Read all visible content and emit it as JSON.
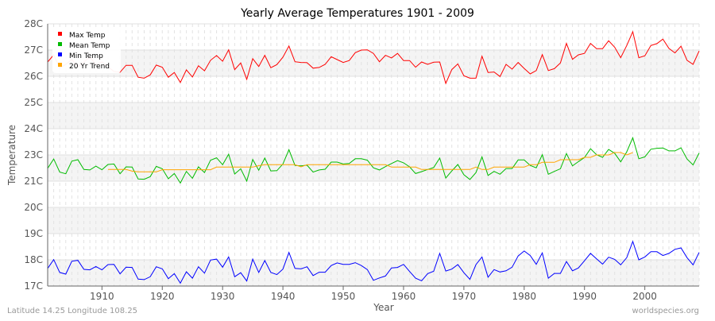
{
  "chart_data": {
    "type": "line",
    "title": "Yearly Average Temperatures 1901 - 2009",
    "xlabel": "Year",
    "ylabel": "Temperature",
    "xlim": [
      1901,
      2009
    ],
    "ylim": [
      17,
      28
    ],
    "x_ticks": [
      1910,
      1920,
      1930,
      1940,
      1950,
      1960,
      1970,
      1980,
      1990,
      2000
    ],
    "y_ticks": [
      {
        "value": 28,
        "label": "28C"
      },
      {
        "value": 26.9,
        "label": "27C"
      },
      {
        "value": 25.8,
        "label": "26C"
      },
      {
        "value": 24.7,
        "label": "25C"
      },
      {
        "value": 23.6,
        "label": "24C"
      },
      {
        "value": 22.5,
        "label": "23C"
      },
      {
        "value": 21.4,
        "label": "21C"
      },
      {
        "value": 20.3,
        "label": "20C"
      },
      {
        "value": 19.2,
        "label": "19C"
      },
      {
        "value": 18.1,
        "label": "18C"
      },
      {
        "value": 17,
        "label": "17C"
      }
    ],
    "grid": true,
    "legend_position": "top-left",
    "x_start": 1901,
    "series": [
      {
        "name": "Max Temp",
        "color": "#ff0000",
        "start": 1901,
        "values": [
          26.4,
          26.7,
          26.15,
          26.3,
          26.5,
          26.2,
          26.4,
          26.6,
          26.3,
          26.4,
          26.2,
          26.0,
          25.97,
          26.26,
          26.26,
          25.76,
          25.72,
          25.86,
          26.27,
          26.18,
          25.76,
          25.96,
          25.54,
          26.07,
          25.77,
          26.24,
          26.03,
          26.47,
          26.67,
          26.43,
          26.91,
          26.08,
          26.36,
          25.67,
          26.54,
          26.21,
          26.68,
          26.16,
          26.29,
          26.6,
          27.07,
          26.41,
          26.38,
          26.37,
          26.14,
          26.17,
          26.3,
          26.62,
          26.5,
          26.38,
          26.46,
          26.79,
          26.9,
          26.91,
          26.76,
          26.41,
          26.68,
          26.57,
          26.76,
          26.46,
          26.46,
          26.18,
          26.4,
          26.3,
          26.39,
          26.4,
          25.5,
          26.08,
          26.32,
          25.82,
          25.72,
          25.72,
          26.64,
          25.96,
          25.98,
          25.79,
          26.3,
          26.1,
          26.38,
          26.13,
          25.9,
          26.04,
          26.71,
          26.04,
          26.12,
          26.36,
          27.18,
          26.51,
          26.7,
          26.76,
          27.18,
          26.96,
          26.96,
          27.29,
          27.02,
          26.58,
          27.09,
          27.67,
          26.58,
          26.66,
          27.09,
          27.17,
          27.36,
          26.97,
          26.78,
          27.06,
          26.47,
          26.3,
          26.86
        ]
      },
      {
        "name": "Mean Temp",
        "color": "#00bb00",
        "start": 1901,
        "values": [
          21.94,
          22.33,
          21.78,
          21.71,
          22.24,
          22.3,
          21.89,
          21.87,
          22.03,
          21.88,
          22.1,
          22.12,
          21.71,
          22.0,
          21.99,
          21.49,
          21.48,
          21.59,
          22.02,
          21.92,
          21.5,
          21.72,
          21.32,
          21.81,
          21.52,
          22.0,
          21.76,
          22.28,
          22.38,
          22.09,
          22.53,
          21.7,
          21.92,
          21.4,
          22.31,
          21.86,
          22.37,
          21.83,
          21.84,
          22.12,
          22.72,
          22.06,
          22.04,
          22.07,
          21.78,
          21.87,
          21.9,
          22.2,
          22.2,
          22.12,
          22.14,
          22.34,
          22.34,
          22.28,
          21.96,
          21.87,
          22.01,
          22.14,
          22.26,
          22.17,
          22.0,
          21.72,
          21.8,
          21.89,
          21.97,
          22.37,
          21.53,
          21.83,
          22.1,
          21.67,
          21.47,
          21.76,
          22.42,
          21.64,
          21.81,
          21.69,
          21.93,
          21.93,
          22.29,
          22.29,
          22.06,
          21.96,
          22.51,
          21.69,
          21.81,
          21.92,
          22.56,
          22.04,
          22.22,
          22.39,
          22.76,
          22.51,
          22.4,
          22.73,
          22.57,
          22.21,
          22.63,
          23.22,
          22.34,
          22.42,
          22.74,
          22.78,
          22.79,
          22.67,
          22.67,
          22.8,
          22.33,
          22.08,
          22.58
        ]
      },
      {
        "name": "Min Temp",
        "color": "#0000ff",
        "start": 1901,
        "values": [
          17.74,
          18.11,
          17.57,
          17.5,
          18.04,
          18.08,
          17.7,
          17.68,
          17.82,
          17.68,
          17.9,
          17.91,
          17.51,
          17.79,
          17.78,
          17.29,
          17.27,
          17.39,
          17.81,
          17.72,
          17.31,
          17.52,
          17.12,
          17.6,
          17.33,
          17.81,
          17.54,
          18.09,
          18.13,
          17.79,
          18.22,
          17.39,
          17.56,
          17.21,
          18.13,
          17.57,
          18.07,
          17.57,
          17.48,
          17.71,
          18.41,
          17.74,
          17.72,
          17.81,
          17.44,
          17.58,
          17.58,
          17.86,
          17.97,
          17.91,
          17.91,
          17.98,
          17.86,
          17.69,
          17.24,
          17.34,
          17.42,
          17.76,
          17.78,
          17.91,
          17.61,
          17.33,
          17.22,
          17.52,
          17.62,
          18.37,
          17.63,
          17.71,
          17.9,
          17.56,
          17.28,
          17.9,
          18.22,
          17.37,
          17.69,
          17.59,
          17.64,
          17.79,
          18.26,
          18.47,
          18.28,
          17.91,
          18.39,
          17.33,
          17.53,
          17.53,
          18.03,
          17.64,
          17.76,
          18.06,
          18.37,
          18.14,
          17.92,
          18.21,
          18.12,
          17.89,
          18.19,
          18.87,
          18.1,
          18.22,
          18.44,
          18.44,
          18.28,
          18.37,
          18.54,
          18.6,
          18.19,
          17.89,
          18.41
        ]
      },
      {
        "name": "20 Yr Trend",
        "color": "#ffa500",
        "start": 1911,
        "values": [
          21.89,
          21.89,
          21.89,
          21.89,
          21.82,
          21.79,
          21.79,
          21.79,
          21.79,
          21.88,
          21.88,
          21.88,
          21.88,
          21.88,
          21.88,
          21.88,
          21.88,
          21.88,
          21.99,
          21.99,
          21.99,
          21.99,
          21.99,
          21.99,
          21.99,
          22.05,
          22.09,
          22.09,
          22.09,
          22.09,
          22.09,
          22.09,
          22.0,
          22.09,
          22.09,
          22.09,
          22.09,
          22.09,
          22.09,
          22.09,
          22.09,
          22.09,
          22.09,
          22.09,
          22.09,
          22.09,
          22.09,
          21.99,
          21.99,
          21.99,
          21.99,
          21.99,
          21.89,
          21.89,
          21.89,
          21.89,
          21.89,
          21.89,
          21.89,
          21.89,
          21.89,
          21.99,
          21.89,
          21.89,
          21.99,
          21.99,
          21.99,
          21.99,
          21.99,
          21.99,
          22.09,
          22.09,
          22.19,
          22.19,
          22.19,
          22.3,
          22.3,
          22.3,
          22.3,
          22.4,
          22.4,
          22.5,
          22.5,
          22.5,
          22.6,
          22.6,
          22.5,
          22.6
        ]
      }
    ]
  },
  "footer": {
    "location": "Latitude 14.25 Longitude 108.25",
    "credit": "worldspecies.org"
  }
}
